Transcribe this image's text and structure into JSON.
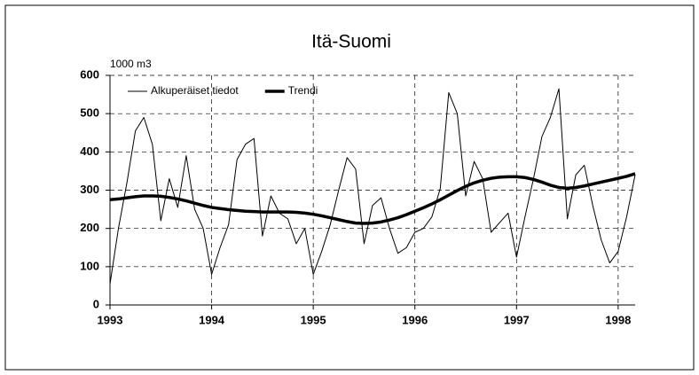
{
  "chart_data": {
    "type": "line",
    "title": "Itä-Suomi",
    "y_label": "1000 m3",
    "x": [
      1993,
      1993.083,
      1993.167,
      1993.25,
      1993.333,
      1993.417,
      1993.5,
      1993.583,
      1993.667,
      1993.75,
      1993.833,
      1993.917,
      1994,
      1994.083,
      1994.167,
      1994.25,
      1994.333,
      1994.417,
      1994.5,
      1994.583,
      1994.667,
      1994.75,
      1994.833,
      1994.917,
      1995,
      1995.083,
      1995.167,
      1995.25,
      1995.333,
      1995.417,
      1995.5,
      1995.583,
      1995.667,
      1995.75,
      1995.833,
      1995.917,
      1996,
      1996.083,
      1996.167,
      1996.25,
      1996.333,
      1996.417,
      1996.5,
      1996.583,
      1996.667,
      1996.75,
      1996.833,
      1996.917,
      1997,
      1997.083,
      1997.167,
      1997.25,
      1997.333,
      1997.417,
      1997.5,
      1997.583,
      1997.667,
      1997.75,
      1997.833,
      1997.917,
      1998,
      1998.083,
      1998.167
    ],
    "series": [
      {
        "name": "Alkuperäiset tiedot",
        "color": "#000000",
        "width": 1,
        "values": [
          55,
          200,
          320,
          455,
          490,
          420,
          220,
          330,
          255,
          390,
          250,
          200,
          80,
          150,
          210,
          380,
          420,
          435,
          180,
          285,
          240,
          225,
          160,
          200,
          80,
          140,
          210,
          300,
          385,
          355,
          160,
          260,
          280,
          200,
          135,
          150,
          190,
          200,
          230,
          305,
          555,
          500,
          285,
          375,
          330,
          190,
          215,
          240,
          125,
          230,
          330,
          440,
          490,
          565,
          225,
          340,
          365,
          260,
          170,
          110,
          140,
          230,
          340
        ]
      },
      {
        "name": "Trendi",
        "color": "#000000",
        "width": 3.5,
        "values": [
          275,
          277,
          280,
          283,
          285,
          285,
          284,
          281,
          277,
          272,
          266,
          260,
          255,
          252,
          249,
          247,
          245,
          244,
          243,
          243,
          243,
          243,
          242,
          240,
          237,
          233,
          228,
          223,
          218,
          214,
          213,
          214,
          217,
          222,
          228,
          236,
          245,
          254,
          264,
          275,
          287,
          299,
          310,
          319,
          326,
          331,
          334,
          335,
          335,
          333,
          328,
          321,
          313,
          307,
          305,
          307,
          311,
          316,
          321,
          326,
          331,
          336,
          343
        ]
      }
    ],
    "xlim": [
      1993,
      1998.167
    ],
    "xticks": [
      1993,
      1994,
      1995,
      1996,
      1997,
      1998
    ],
    "ylim": [
      0,
      600
    ],
    "yticks": [
      0,
      100,
      200,
      300,
      400,
      500,
      600
    ],
    "grid": true,
    "legend": "top-left"
  }
}
